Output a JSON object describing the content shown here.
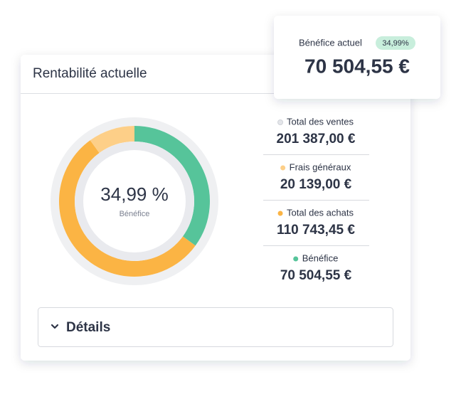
{
  "card": {
    "title": "Rentabilité actuelle",
    "details": "Détails"
  },
  "popup": {
    "label": "Bénéfice actuel",
    "badge": "34,99%",
    "value": "70 504,55 €"
  },
  "chart_data": {
    "type": "donut",
    "center_value": "34,99 %",
    "center_label": "Bénéfice",
    "categories": [
      "Total des ventes",
      "Frais généraux",
      "Total des achats",
      "Bénéfice"
    ],
    "values": [
      201387.0,
      20139.0,
      110743.45,
      70504.55
    ],
    "value_labels": [
      "201 387,00 €",
      "20 139,00 €",
      "110 743,45 €",
      "70 504,55 €"
    ],
    "colors": [
      "#e4e6ea",
      "#fdcf88",
      "#fbb444",
      "#56c49a"
    ]
  }
}
